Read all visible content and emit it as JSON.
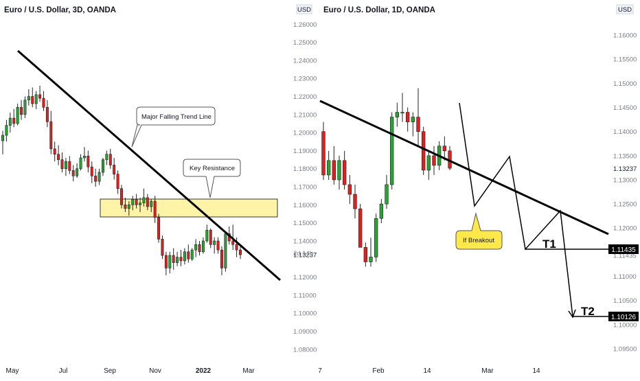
{
  "left_panel": {
    "title": "Euro / U.S. Dollar, 3D, OANDA",
    "currency": "USD",
    "price_labels": [
      "1.26000",
      "1.25000",
      "1.24000",
      "1.23000",
      "1.22000",
      "1.21000",
      "1.20000",
      "1.19000",
      "1.18000",
      "1.17000",
      "1.16000",
      "1.15000",
      "1.14000",
      "1.13237",
      "1.12000",
      "1.11000",
      "1.10000",
      "1.09000",
      "1.08000"
    ],
    "countdown": "2d 14h",
    "time_labels": [
      "May",
      "Jul",
      "Sep",
      "Nov",
      "2022",
      "Mar"
    ],
    "annotations": {
      "trend_line": "Major Falling Trend Line",
      "resistance": "Key Resistance"
    }
  },
  "right_panel": {
    "title": "Euro / U.S. Dollar, 1D, OANDA",
    "currency": "USD",
    "price_labels": [
      "1.16000",
      "1.15500",
      "1.15000",
      "1.14500",
      "1.14000",
      "1.13500",
      "1.13237",
      "1.13000",
      "1.12500",
      "1.12000",
      "1.11435",
      "1.11000",
      "1.10500",
      "1.10126",
      "1.10000",
      "1.09500"
    ],
    "time_labels": [
      "7",
      "Feb",
      "14",
      "Mar",
      "14"
    ],
    "annotations": {
      "breakout": "If Breakout",
      "t1": "T1",
      "t2": "T2"
    },
    "target_tags": {
      "t1": "1.11435",
      "t2": "1.10126"
    }
  },
  "colors": {
    "bull": "#2aa336",
    "bear": "#e02020",
    "zone": "#fff3a8",
    "callout": "#ffe84a",
    "line": "#000000"
  },
  "chart_data": [
    {
      "type": "candlestick",
      "title": "Euro / U.S. Dollar, 3D, OANDA",
      "y_axis_unit": "USD",
      "ylim": [
        1.075,
        1.262
      ],
      "x_ticks": [
        "May",
        "Jul",
        "Sep",
        "Nov",
        "2022",
        "Mar"
      ],
      "last_price": 1.13237,
      "candles": [
        [
          1.1955,
          1.201,
          1.188,
          1.1985
        ],
        [
          1.1985,
          1.207,
          1.195,
          1.204
        ],
        [
          1.204,
          1.211,
          1.2,
          1.208
        ],
        [
          1.208,
          1.213,
          1.203,
          1.205
        ],
        [
          1.205,
          1.216,
          1.204,
          1.214
        ],
        [
          1.214,
          1.218,
          1.207,
          1.21
        ],
        [
          1.21,
          1.22,
          1.208,
          1.218
        ],
        [
          1.218,
          1.224,
          1.215,
          1.22
        ],
        [
          1.22,
          1.225,
          1.214,
          1.216
        ],
        [
          1.216,
          1.223,
          1.213,
          1.221
        ],
        [
          1.221,
          1.226,
          1.217,
          1.219
        ],
        [
          1.219,
          1.223,
          1.212,
          1.214
        ],
        [
          1.214,
          1.218,
          1.203,
          1.206
        ],
        [
          1.206,
          1.212,
          1.188,
          1.191
        ],
        [
          1.191,
          1.195,
          1.184,
          1.188
        ],
        [
          1.188,
          1.193,
          1.182,
          1.185
        ],
        [
          1.185,
          1.189,
          1.178,
          1.18
        ],
        [
          1.18,
          1.186,
          1.176,
          1.184
        ],
        [
          1.184,
          1.187,
          1.177,
          1.179
        ],
        [
          1.179,
          1.182,
          1.173,
          1.176
        ],
        [
          1.176,
          1.183,
          1.175,
          1.18
        ],
        [
          1.18,
          1.188,
          1.179,
          1.186
        ],
        [
          1.186,
          1.192,
          1.184,
          1.187
        ],
        [
          1.187,
          1.19,
          1.178,
          1.181
        ],
        [
          1.181,
          1.184,
          1.172,
          1.176
        ],
        [
          1.176,
          1.18,
          1.17,
          1.173
        ],
        [
          1.173,
          1.18,
          1.171,
          1.178
        ],
        [
          1.178,
          1.186,
          1.176,
          1.185
        ],
        [
          1.185,
          1.19,
          1.182,
          1.188
        ],
        [
          1.188,
          1.191,
          1.18,
          1.182
        ],
        [
          1.182,
          1.186,
          1.174,
          1.177
        ],
        [
          1.177,
          1.179,
          1.166,
          1.169
        ],
        [
          1.169,
          1.171,
          1.158,
          1.16
        ],
        [
          1.16,
          1.164,
          1.156,
          1.158
        ],
        [
          1.158,
          1.162,
          1.154,
          1.16
        ],
        [
          1.16,
          1.165,
          1.157,
          1.163
        ],
        [
          1.163,
          1.166,
          1.158,
          1.16
        ],
        [
          1.16,
          1.164,
          1.156,
          1.161
        ],
        [
          1.161,
          1.169,
          1.159,
          1.164
        ],
        [
          1.164,
          1.166,
          1.157,
          1.159
        ],
        [
          1.159,
          1.163,
          1.156,
          1.162
        ],
        [
          1.162,
          1.165,
          1.15,
          1.153
        ],
        [
          1.153,
          1.155,
          1.139,
          1.141
        ],
        [
          1.141,
          1.143,
          1.13,
          1.132
        ],
        [
          1.132,
          1.134,
          1.121,
          1.125
        ],
        [
          1.125,
          1.134,
          1.122,
          1.132
        ],
        [
          1.132,
          1.136,
          1.124,
          1.128
        ],
        [
          1.128,
          1.134,
          1.126,
          1.131
        ],
        [
          1.131,
          1.135,
          1.126,
          1.129
        ],
        [
          1.129,
          1.136,
          1.127,
          1.134
        ],
        [
          1.134,
          1.138,
          1.128,
          1.13
        ],
        [
          1.13,
          1.136,
          1.129,
          1.135
        ],
        [
          1.135,
          1.141,
          1.131,
          1.138
        ],
        [
          1.138,
          1.14,
          1.132,
          1.134
        ],
        [
          1.134,
          1.142,
          1.133,
          1.14
        ],
        [
          1.14,
          1.149,
          1.139,
          1.146
        ],
        [
          1.146,
          1.147,
          1.136,
          1.138
        ],
        [
          1.138,
          1.142,
          1.133,
          1.14
        ],
        [
          1.14,
          1.142,
          1.133,
          1.135
        ],
        [
          1.135,
          1.137,
          1.121,
          1.125
        ],
        [
          1.125,
          1.145,
          1.123,
          1.144
        ],
        [
          1.144,
          1.148,
          1.138,
          1.14
        ],
        [
          1.14,
          1.149,
          1.135,
          1.138
        ],
        [
          1.138,
          1.142,
          1.131,
          1.135
        ],
        [
          1.135,
          1.138,
          1.13,
          1.1324
        ]
      ]
    },
    {
      "type": "candlestick",
      "title": "Euro / U.S. Dollar, 1D, OANDA",
      "y_axis_unit": "USD",
      "ylim": [
        1.093,
        1.163
      ],
      "x_ticks": [
        "7",
        "Feb",
        "14",
        "Mar",
        "14"
      ],
      "last_price": 1.13237,
      "candles": [
        [
          1.14,
          1.142,
          1.13,
          1.131
        ],
        [
          1.131,
          1.136,
          1.13,
          1.134
        ],
        [
          1.134,
          1.137,
          1.129,
          1.13
        ],
        [
          1.13,
          1.135,
          1.128,
          1.134
        ],
        [
          1.134,
          1.136,
          1.128,
          1.129
        ],
        [
          1.129,
          1.131,
          1.125,
          1.127
        ],
        [
          1.127,
          1.129,
          1.122,
          1.124
        ],
        [
          1.124,
          1.125,
          1.116,
          1.116
        ],
        [
          1.116,
          1.117,
          1.112,
          1.113
        ],
        [
          1.113,
          1.118,
          1.112,
          1.114
        ],
        [
          1.114,
          1.123,
          1.113,
          1.122
        ],
        [
          1.122,
          1.126,
          1.121,
          1.125
        ],
        [
          1.125,
          1.131,
          1.124,
          1.129
        ],
        [
          1.129,
          1.144,
          1.128,
          1.143
        ],
        [
          1.143,
          1.146,
          1.141,
          1.144
        ],
        [
          1.144,
          1.148,
          1.142,
          1.144
        ],
        [
          1.144,
          1.145,
          1.14,
          1.142
        ],
        [
          1.142,
          1.144,
          1.139,
          1.143
        ],
        [
          1.143,
          1.149,
          1.137,
          1.14
        ],
        [
          1.14,
          1.141,
          1.131,
          1.132
        ],
        [
          1.132,
          1.136,
          1.13,
          1.135
        ],
        [
          1.135,
          1.137,
          1.131,
          1.133
        ],
        [
          1.133,
          1.138,
          1.132,
          1.137
        ],
        [
          1.137,
          1.139,
          1.134,
          1.136
        ],
        [
          1.136,
          1.137,
          1.132,
          1.1324
        ]
      ]
    }
  ]
}
